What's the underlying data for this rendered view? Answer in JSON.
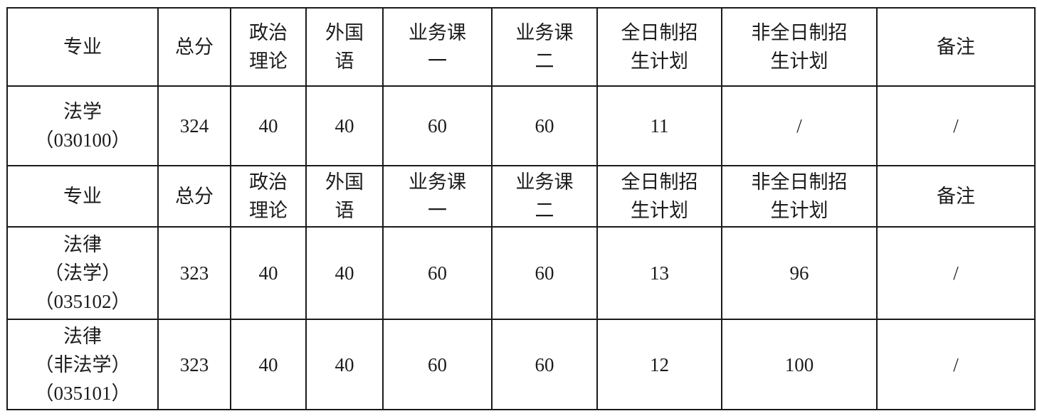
{
  "table": {
    "border_color": "#1a1a1a",
    "text_color": "#1c1c1c",
    "background": "#ffffff",
    "sections": [
      {
        "header": [
          "专业",
          "总分",
          "政治\n理论",
          "外国\n语",
          "业务课\n一",
          "业务课\n二",
          "全日制招\n生计划",
          "非全日制招\n生计划",
          "备注"
        ],
        "rows": [
          [
            "法学\n（030100）",
            "324",
            "40",
            "40",
            "60",
            "60",
            "11",
            "/",
            "/"
          ]
        ]
      },
      {
        "header": [
          "专业",
          "总分",
          "政治\n理论",
          "外国\n语",
          "业务课\n一",
          "业务课\n二",
          "全日制招\n生计划",
          "非全日制招\n生计划",
          "备注"
        ],
        "rows": [
          [
            "法律\n（法学）\n（035102）",
            "323",
            "40",
            "40",
            "60",
            "60",
            "13",
            "96",
            "/"
          ],
          [
            "法律\n（非法学）\n（035101）",
            "323",
            "40",
            "40",
            "60",
            "60",
            "12",
            "100",
            "/"
          ]
        ]
      }
    ]
  }
}
